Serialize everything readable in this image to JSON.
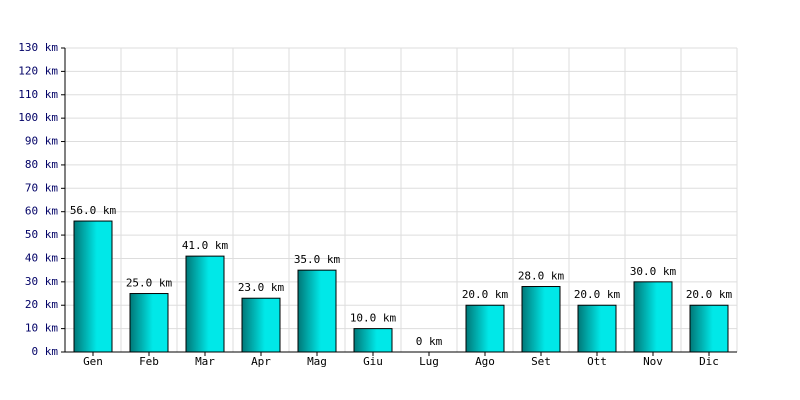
{
  "chart_data": {
    "type": "bar",
    "categories": [
      "Gen",
      "Feb",
      "Mar",
      "Apr",
      "Mag",
      "Giu",
      "Lug",
      "Ago",
      "Set",
      "Ott",
      "Nov",
      "Dic"
    ],
    "values": [
      56,
      25,
      41,
      23,
      35,
      10,
      0,
      20,
      28,
      20,
      30,
      20
    ],
    "value_labels": [
      "56.0 km",
      "25.0 km",
      "41.0 km",
      "23.0 km",
      "35.0 km",
      "10.0 km",
      "0 km",
      "20.0 km",
      "28.0 km",
      "20.0 km",
      "30.0 km",
      "20.0 km"
    ],
    "color": "#00e8e8",
    "shade_color": "#007878",
    "ylim": [
      0,
      130
    ],
    "yticks": [
      {
        "value": 0,
        "label": "0 km"
      },
      {
        "value": 10,
        "label": "10 km"
      },
      {
        "value": 20,
        "label": "20 km"
      },
      {
        "value": 30,
        "label": "30 km"
      },
      {
        "value": 40,
        "label": "40 km"
      },
      {
        "value": 50,
        "label": "50 km"
      },
      {
        "value": 60,
        "label": "60 km"
      },
      {
        "value": 70,
        "label": "70 km"
      },
      {
        "value": 80,
        "label": "80 km"
      },
      {
        "value": 90,
        "label": "90 km"
      },
      {
        "value": 100,
        "label": "100 km"
      },
      {
        "value": 110,
        "label": "110 km"
      },
      {
        "value": 120,
        "label": "120 km"
      },
      {
        "value": 130,
        "label": "130 km"
      }
    ],
    "grid": true
  }
}
